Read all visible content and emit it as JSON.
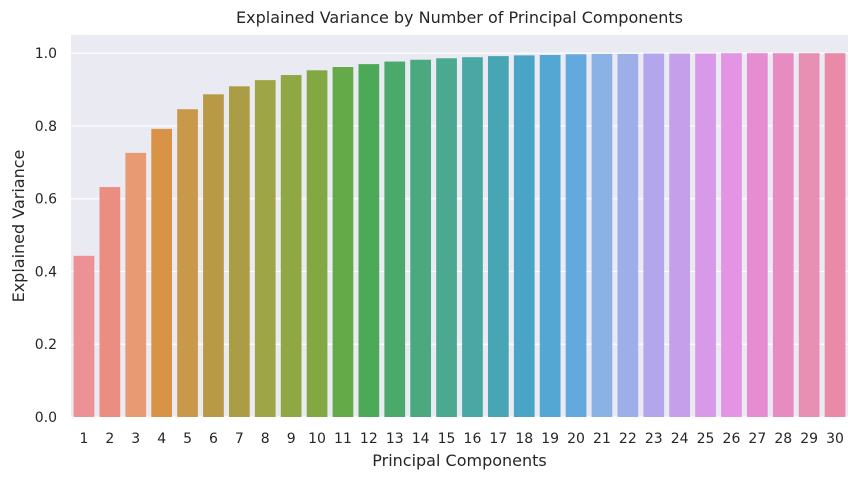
{
  "chart_data": {
    "type": "bar",
    "title": "Explained Variance by Number of Principal Components",
    "xlabel": "Principal Components",
    "ylabel": "Explained Variance",
    "categories": [
      "1",
      "2",
      "3",
      "4",
      "5",
      "6",
      "7",
      "8",
      "9",
      "10",
      "11",
      "12",
      "13",
      "14",
      "15",
      "16",
      "17",
      "18",
      "19",
      "20",
      "21",
      "22",
      "23",
      "24",
      "25",
      "26",
      "27",
      "28",
      "29",
      "30"
    ],
    "values": [
      0.443,
      0.632,
      0.726,
      0.792,
      0.846,
      0.887,
      0.909,
      0.926,
      0.94,
      0.953,
      0.962,
      0.97,
      0.977,
      0.982,
      0.986,
      0.989,
      0.992,
      0.994,
      0.995,
      0.997,
      0.998,
      0.998,
      0.999,
      0.999,
      0.999,
      1.0,
      1.0,
      1.0,
      1.0,
      1.0
    ],
    "ylim": [
      0,
      1.05
    ],
    "yticks": [
      "0.0",
      "0.2",
      "0.4",
      "0.6",
      "0.8",
      "1.0"
    ],
    "grid": true,
    "background": "#eaeaf2",
    "colors": [
      "#ed9196",
      "#eb8d80",
      "#e89a72",
      "#d99346",
      "#c8994b",
      "#b89a46",
      "#ab9d46",
      "#9ea547",
      "#8fa844",
      "#82a844",
      "#64aa48",
      "#4ba958",
      "#4ba96b",
      "#4aa97f",
      "#4aa990",
      "#4aa8a4",
      "#48a6b4",
      "#4aa4c5",
      "#54a7d3",
      "#64a9dd",
      "#8ab2e5",
      "#9daee9",
      "#b3a6ec",
      "#c69feb",
      "#d999e9",
      "#e394e5",
      "#e68dd1",
      "#e68cc0",
      "#e890b4",
      "#e88aa8"
    ]
  }
}
